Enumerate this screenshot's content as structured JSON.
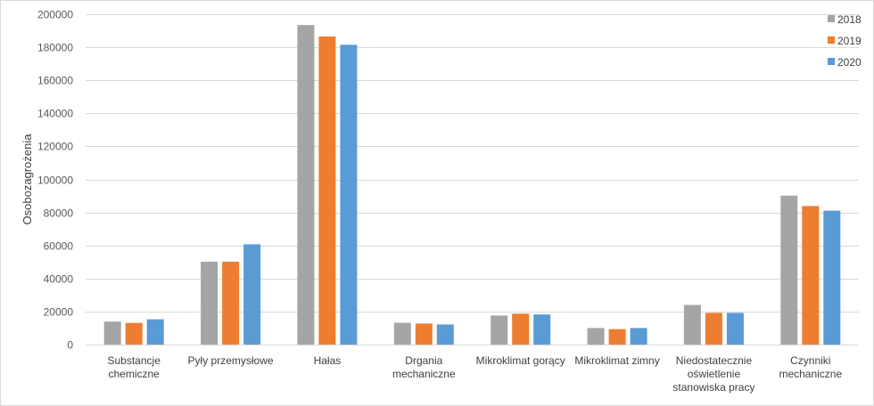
{
  "chart_data": {
    "type": "bar",
    "title": "",
    "xlabel": "",
    "ylabel": "Osobozagrożenia",
    "ylim": [
      0,
      200000
    ],
    "yticks": [
      0,
      20000,
      40000,
      60000,
      80000,
      100000,
      120000,
      140000,
      160000,
      180000,
      200000
    ],
    "grid": true,
    "legend_position": "top-right",
    "categories": [
      [
        "Substancje",
        "chemiczne"
      ],
      [
        "Pyły przemysłowe"
      ],
      [
        "Hałas"
      ],
      [
        "Drgania",
        "mechaniczne"
      ],
      [
        "Mikroklimat gorący"
      ],
      [
        "Mikroklimat zimny"
      ],
      [
        "Niedostatecznie",
        "oświetlenie",
        "stanowiska pracy"
      ],
      [
        "Czynniki",
        "mechaniczne"
      ]
    ],
    "series": [
      {
        "name": "2018",
        "color": "#a5a5a5",
        "values": [
          13900,
          50200,
          193500,
          13200,
          17600,
          10000,
          24000,
          90200
        ]
      },
      {
        "name": "2019",
        "color": "#ed7d31",
        "values": [
          13100,
          50200,
          186500,
          12700,
          18700,
          9300,
          19200,
          83900
        ]
      },
      {
        "name": "2020",
        "color": "#5b9bd5",
        "values": [
          15300,
          60700,
          181500,
          12200,
          18200,
          10000,
          19200,
          81100
        ]
      }
    ]
  }
}
